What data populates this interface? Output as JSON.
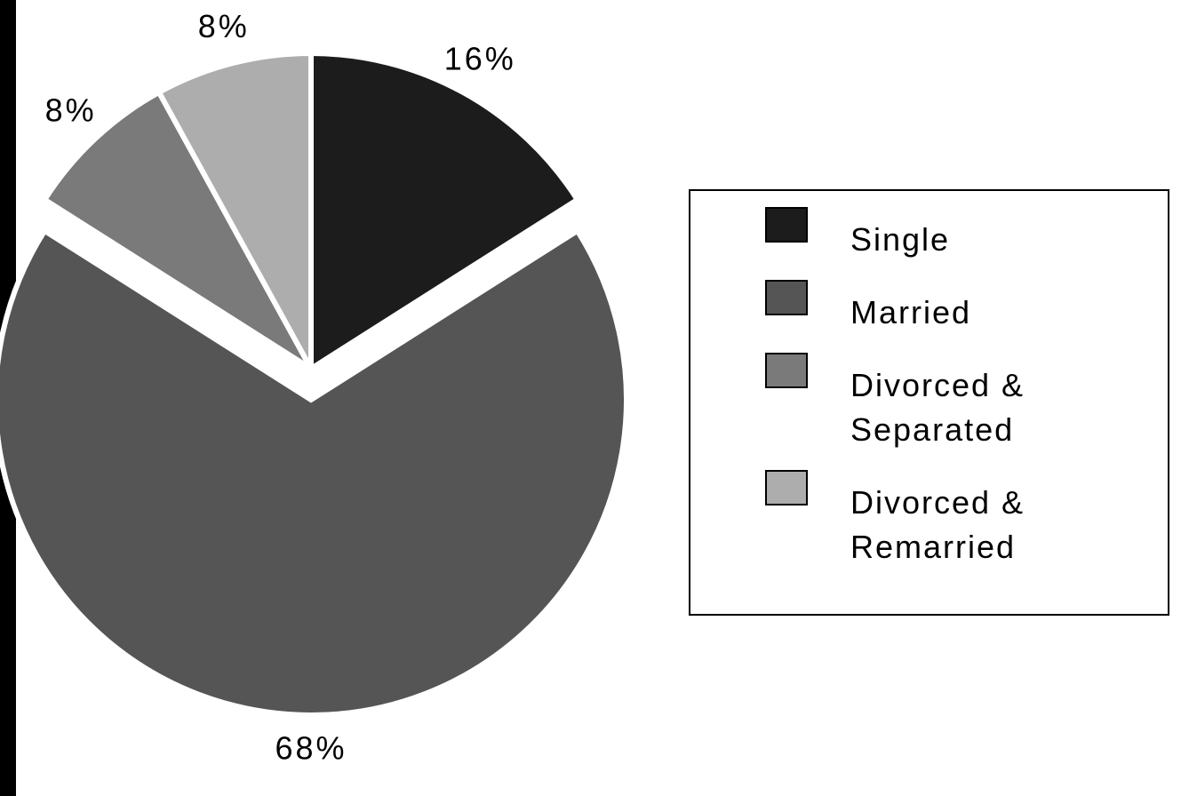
{
  "chart_data": {
    "type": "pie",
    "categories": [
      "Single",
      "Married",
      "Divorced & Separated",
      "Divorced & Remarried"
    ],
    "values": [
      16,
      68,
      8,
      8
    ],
    "value_labels": [
      "16%",
      "68%",
      "8%",
      "8%"
    ],
    "colors": [
      "#1c1c1c",
      "#555555",
      "#7a7a7a",
      "#adadad"
    ],
    "exploded": [
      false,
      true,
      false,
      false
    ],
    "legend": "right"
  }
}
